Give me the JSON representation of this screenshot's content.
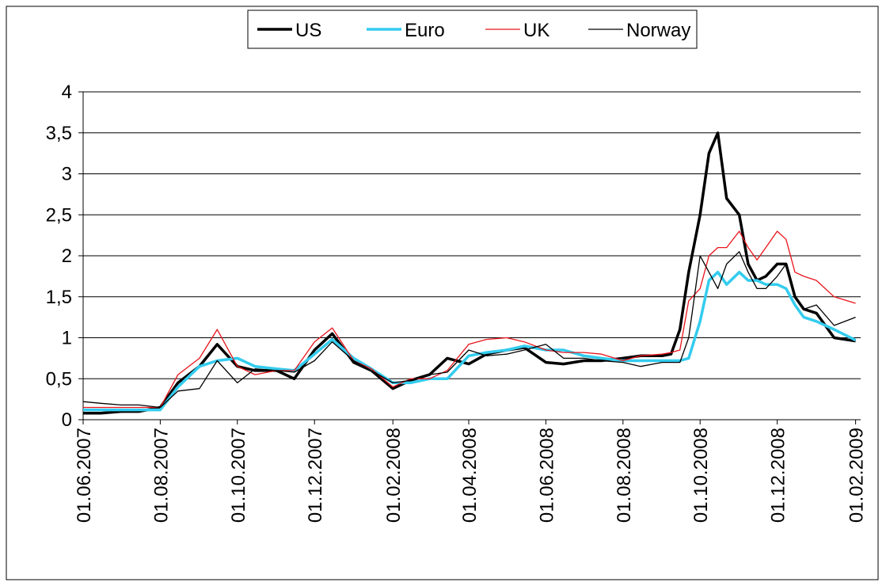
{
  "chart_data": {
    "type": "line",
    "x": [
      "2007-06-01",
      "2007-06-15",
      "2007-07-01",
      "2007-07-15",
      "2007-08-01",
      "2007-08-15",
      "2007-09-01",
      "2007-09-15",
      "2007-10-01",
      "2007-10-15",
      "2007-11-01",
      "2007-11-15",
      "2007-12-01",
      "2007-12-15",
      "2008-01-01",
      "2008-01-15",
      "2008-02-01",
      "2008-02-15",
      "2008-03-01",
      "2008-03-15",
      "2008-04-01",
      "2008-04-15",
      "2008-05-01",
      "2008-05-15",
      "2008-06-01",
      "2008-06-15",
      "2008-07-01",
      "2008-07-15",
      "2008-08-01",
      "2008-08-15",
      "2008-09-01",
      "2008-09-08",
      "2008-09-15",
      "2008-09-22",
      "2008-10-01",
      "2008-10-08",
      "2008-10-15",
      "2008-10-22",
      "2008-11-01",
      "2008-11-08",
      "2008-11-15",
      "2008-11-22",
      "2008-12-01",
      "2008-12-08",
      "2008-12-15",
      "2008-12-22",
      "2009-01-01",
      "2009-01-15",
      "2009-02-01"
    ],
    "series": [
      {
        "name": "US",
        "color": "#000000",
        "line_width": 3.5,
        "values": [
          0.08,
          0.08,
          0.1,
          0.1,
          0.15,
          0.45,
          0.65,
          0.92,
          0.65,
          0.6,
          0.6,
          0.5,
          0.85,
          1.05,
          0.7,
          0.6,
          0.38,
          0.48,
          0.55,
          0.75,
          0.68,
          0.8,
          0.85,
          0.88,
          0.7,
          0.68,
          0.72,
          0.72,
          0.75,
          0.78,
          0.78,
          0.8,
          1.1,
          1.8,
          2.5,
          3.25,
          3.5,
          2.7,
          2.5,
          1.9,
          1.7,
          1.75,
          1.9,
          1.9,
          1.5,
          1.35,
          1.3,
          1.0,
          0.96
        ]
      },
      {
        "name": "Euro",
        "color": "#33ccee",
        "line_width": 3.5,
        "values": [
          0.12,
          0.12,
          0.12,
          0.12,
          0.12,
          0.4,
          0.65,
          0.72,
          0.75,
          0.65,
          0.62,
          0.6,
          0.8,
          0.98,
          0.75,
          0.62,
          0.45,
          0.45,
          0.5,
          0.5,
          0.78,
          0.82,
          0.85,
          0.9,
          0.85,
          0.85,
          0.78,
          0.75,
          0.72,
          0.72,
          0.72,
          0.72,
          0.72,
          0.75,
          1.2,
          1.7,
          1.8,
          1.65,
          1.8,
          1.7,
          1.7,
          1.65,
          1.65,
          1.6,
          1.4,
          1.25,
          1.2,
          1.1,
          0.97
        ]
      },
      {
        "name": "UK",
        "color": "#e8141b",
        "line_width": 1.3,
        "values": [
          0.15,
          0.15,
          0.15,
          0.15,
          0.15,
          0.55,
          0.75,
          1.1,
          0.65,
          0.55,
          0.6,
          0.6,
          0.95,
          1.12,
          0.72,
          0.62,
          0.4,
          0.5,
          0.5,
          0.6,
          0.92,
          0.98,
          1.0,
          0.95,
          0.85,
          0.82,
          0.82,
          0.8,
          0.72,
          0.78,
          0.8,
          0.82,
          0.85,
          1.45,
          1.6,
          2.0,
          2.1,
          2.1,
          2.3,
          2.1,
          1.95,
          2.1,
          2.3,
          2.2,
          1.8,
          1.75,
          1.7,
          1.5,
          1.42
        ]
      },
      {
        "name": "Norway",
        "color": "#000000",
        "line_width": 1.3,
        "values": [
          0.22,
          0.2,
          0.18,
          0.18,
          0.15,
          0.35,
          0.38,
          0.72,
          0.45,
          0.62,
          0.6,
          0.58,
          0.72,
          0.95,
          0.72,
          0.6,
          0.45,
          0.48,
          0.55,
          0.58,
          0.85,
          0.78,
          0.8,
          0.85,
          0.92,
          0.75,
          0.75,
          0.72,
          0.7,
          0.65,
          0.7,
          0.7,
          0.7,
          1.0,
          2.0,
          1.8,
          1.6,
          1.9,
          2.05,
          1.8,
          1.6,
          1.6,
          1.75,
          1.9,
          1.5,
          1.35,
          1.4,
          1.15,
          1.25
        ]
      }
    ],
    "xlim": [
      "2007-06-01",
      "2009-02-05"
    ],
    "xticks": [
      {
        "value": "2007-06-01",
        "label": "01.06.2007"
      },
      {
        "value": "2007-08-01",
        "label": "01.08.2007"
      },
      {
        "value": "2007-10-01",
        "label": "01.10.2007"
      },
      {
        "value": "2007-12-01",
        "label": "01.12.2007"
      },
      {
        "value": "2008-02-01",
        "label": "01.02.2008"
      },
      {
        "value": "2008-04-01",
        "label": "01.04.2008"
      },
      {
        "value": "2008-06-01",
        "label": "01.06.2008"
      },
      {
        "value": "2008-08-01",
        "label": "01.08.2008"
      },
      {
        "value": "2008-10-01",
        "label": "01.10.2008"
      },
      {
        "value": "2008-12-01",
        "label": "01.12.2008"
      },
      {
        "value": "2009-02-01",
        "label": "01.02.2009"
      }
    ],
    "ylim": [
      0,
      4
    ],
    "yticks": [
      0,
      {
        "value": 0.5,
        "label": "0,5"
      },
      1,
      {
        "value": 1.5,
        "label": "1,5"
      },
      2,
      {
        "value": 2.5,
        "label": "2,5"
      },
      3,
      {
        "value": 3.5,
        "label": "3,5"
      },
      4
    ],
    "grid": true,
    "legend": "top"
  }
}
